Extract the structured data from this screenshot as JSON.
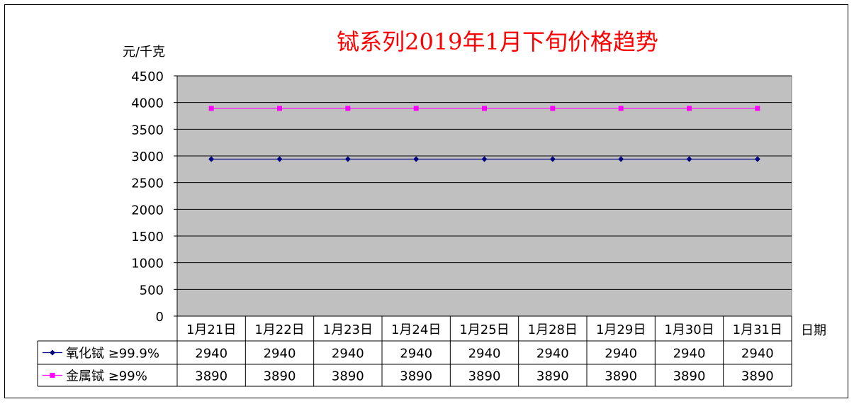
{
  "chart_data": {
    "type": "line",
    "title": "铽系列2019年1月下旬价格趋势",
    "ylabel": "元/千克",
    "xlabel": "日期",
    "ylim": [
      0,
      4500
    ],
    "y_ticks": [
      0,
      500,
      1000,
      1500,
      2000,
      2500,
      3000,
      3500,
      4000,
      4500
    ],
    "grid": true,
    "legend": "data-table",
    "categories": [
      "1月21日",
      "1月22日",
      "1月23日",
      "1月24日",
      "1月25日",
      "1月28日",
      "1月29日",
      "1月30日",
      "1月31日"
    ],
    "series": [
      {
        "name": "氧化铽 ≥99.9%",
        "values": [
          2940,
          2940,
          2940,
          2940,
          2940,
          2940,
          2940,
          2940,
          2940
        ],
        "color": "#000080",
        "marker": "diamond"
      },
      {
        "name": "金属铽 ≥99%",
        "values": [
          3890,
          3890,
          3890,
          3890,
          3890,
          3890,
          3890,
          3890,
          3890
        ],
        "color": "#ff00ff",
        "marker": "square"
      }
    ],
    "plot_background": "#c0c0c0",
    "title_color": "#ff0000"
  }
}
